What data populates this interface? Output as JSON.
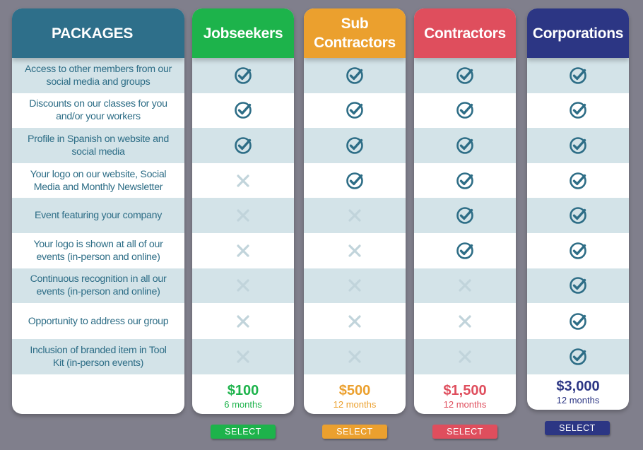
{
  "header": {
    "packages_label": "PACKAGES"
  },
  "features": [
    "Access to other members from our social media and groups",
    "Discounts on our classes for you and/or your workers",
    "Profile in Spanish on website and social media",
    "Your logo on our website, Social Media and Monthly Newsletter",
    "Event featuring your company",
    "Your logo is shown at all of our events (in-person and online)",
    "Continuous recognition in all our events (in-person and online)",
    "Opportunity to address our group",
    "Inclusion of branded item in Tool Kit  (in-person events)"
  ],
  "packages": [
    {
      "name": "Jobseekers",
      "color": "#1db34b",
      "price": "$100",
      "period": "6 months",
      "select_label": "SELECT",
      "included": [
        true,
        true,
        true,
        false,
        false,
        false,
        false,
        false,
        false
      ]
    },
    {
      "name": "Sub Contractors",
      "color": "#eba02e",
      "price": "$500",
      "period": "12 months",
      "select_label": "SELECT",
      "included": [
        true,
        true,
        true,
        true,
        false,
        false,
        false,
        false,
        false
      ]
    },
    {
      "name": "Contractors",
      "color": "#df4e5d",
      "price": "$1,500",
      "period": "12 months",
      "select_label": "SELECT",
      "included": [
        true,
        true,
        true,
        true,
        true,
        true,
        false,
        false,
        false
      ]
    },
    {
      "name": "Corporations",
      "color": "#2c3684",
      "price": "$3,000",
      "period": "12 months",
      "select_label": "SELECT",
      "included": [
        true,
        true,
        true,
        true,
        true,
        true,
        true,
        true,
        true
      ]
    }
  ],
  "icons": {
    "included": "check-circle-icon",
    "excluded": "cross-icon"
  },
  "colors": {
    "header_features": "#2e6f8a",
    "feature_text": "#2d6d86",
    "check": "#2d6d86",
    "cross": "#c1d4db"
  }
}
